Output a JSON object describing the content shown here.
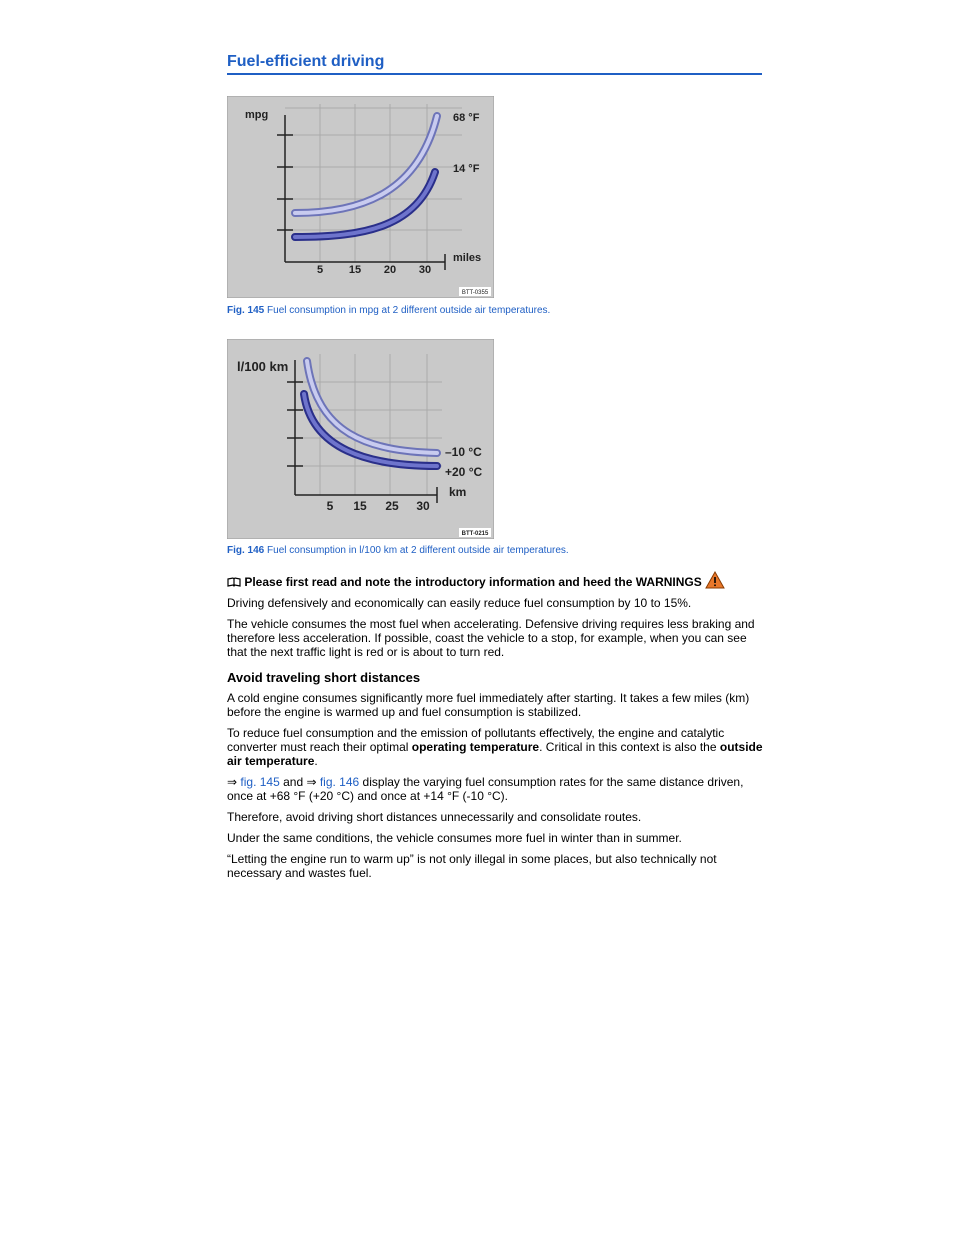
{
  "header": {
    "title": "Fuel-efficient driving"
  },
  "figures": [
    {
      "labels": {
        "y_axis": "mpg",
        "curve_upper": "68 °F",
        "curve_lower": "14 °F",
        "x_axis": "miles",
        "x_ticks": [
          "5",
          "15",
          "20",
          "30"
        ],
        "code": "BTT-0355"
      },
      "caption": {
        "number": "Fig. 145",
        "text": "Fuel consumption in mpg at 2 different outside air temperatures."
      }
    },
    {
      "labels": {
        "y_axis": "l/100 km",
        "curve_upper": "–10 °C",
        "curve_lower": "+20 °C",
        "x_axis": "km",
        "x_ticks": [
          "5",
          "15",
          "25",
          "30"
        ],
        "code": "BTT-0215"
      },
      "caption": {
        "number": "Fig. 146",
        "text": "Fuel consumption in l/100 km at 2 different outside air temperatures."
      }
    }
  ],
  "notice": "Please first read and note the introductory information and heed the WARNINGS",
  "paragraphs": [
    [
      {
        "text": "Driving defensively and economically can easily reduce fuel consumption by 10 to 15%."
      }
    ],
    [
      {
        "text": "The vehicle consumes the most fuel when accelerating. Defensive driving requires less braking and therefore less acceleration. If possible, coast the vehicle to a stop, for example, when you can see that the next traffic light is red or is about to turn red."
      }
    ]
  ],
  "section": {
    "heading": "Avoid traveling short distances",
    "paragraphs": [
      [
        {
          "text": "A cold engine consumes significantly more fuel immediately after starting. It takes a few miles (km) before the engine is warmed up and fuel consumption is stabilized."
        }
      ],
      [
        {
          "text": "To reduce fuel consumption and the emission of pollutants effectively, the engine and catalytic converter must reach their optimal "
        },
        {
          "bold": "operating temperature"
        },
        {
          "text": ". Critical in this context is also the "
        },
        {
          "bold": "outside air temperature"
        },
        {
          "text": "."
        }
      ],
      [
        {
          "text": "⇒ "
        },
        {
          "link": "fig. 145"
        },
        {
          "text": " and ⇒ "
        },
        {
          "link": "fig. 146"
        },
        {
          "text": " display the varying fuel consumption rates for the same distance driven, once at +68 °F (+20 °C) and once at +14 °F (-10 °C)."
        }
      ],
      [
        {
          "text": "Therefore, avoid driving short distances unnecessarily and consolidate routes."
        }
      ],
      [
        {
          "text": "Under the same conditions, the vehicle consumes more fuel in winter than in summer."
        }
      ],
      [
        {
          "text": "“Letting the engine run to warm up” is not only illegal in some places, but also technically not necessary and wastes fuel."
        }
      ]
    ]
  }
}
